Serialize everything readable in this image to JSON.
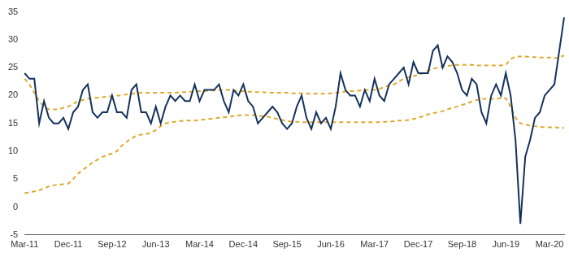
{
  "chart_data": {
    "type": "line",
    "categories": [
      "Mar-11",
      null,
      null,
      null,
      null,
      null,
      null,
      null,
      null,
      "Dec-11",
      null,
      null,
      null,
      null,
      null,
      null,
      null,
      null,
      "Sep-12",
      null,
      null,
      null,
      null,
      null,
      null,
      null,
      null,
      "Jun-13",
      null,
      null,
      null,
      null,
      null,
      null,
      null,
      null,
      "Mar-14",
      null,
      null,
      null,
      null,
      null,
      null,
      null,
      null,
      "Dec-14",
      null,
      null,
      null,
      null,
      null,
      null,
      null,
      null,
      "Sep-15",
      null,
      null,
      null,
      null,
      null,
      null,
      null,
      null,
      "Jun-16",
      null,
      null,
      null,
      null,
      null,
      null,
      null,
      null,
      "Mar-17",
      null,
      null,
      null,
      null,
      null,
      null,
      null,
      null,
      "Dec-17",
      null,
      null,
      null,
      null,
      null,
      null,
      null,
      null,
      "Sep-18",
      null,
      null,
      null,
      null,
      null,
      null,
      null,
      null,
      "Jun-19",
      null,
      null,
      null,
      null,
      null,
      null,
      null,
      null,
      "Mar-20",
      null,
      null,
      null
    ],
    "series": [
      {
        "color": "#14325c",
        "line_style": "solid",
        "values": [
          24,
          23,
          23,
          15,
          19,
          16,
          15,
          15,
          16,
          14,
          17,
          18,
          21,
          22,
          17,
          16,
          17,
          17,
          20,
          17,
          17,
          16,
          21,
          22,
          17,
          17,
          15,
          18,
          15,
          18,
          20,
          19,
          20,
          19,
          19,
          22,
          19,
          21,
          21,
          21,
          22,
          19,
          17,
          21,
          20,
          22,
          19,
          18,
          15,
          16,
          17,
          18,
          17,
          15,
          14,
          15,
          18,
          20,
          16,
          14,
          17,
          15,
          16,
          14,
          18,
          24,
          21,
          20,
          20,
          18,
          21,
          19,
          23,
          20,
          19,
          22,
          23,
          24,
          25,
          22,
          26,
          24,
          24,
          24,
          28,
          29,
          25,
          27,
          26,
          24,
          21,
          20,
          23,
          22,
          17,
          15,
          20,
          22,
          20,
          24,
          20,
          12,
          -3,
          9,
          12,
          16,
          17,
          20,
          21,
          22,
          28,
          34
        ]
      },
      {
        "color": "#e0a92e",
        "line_style": "dashed",
        "values": [
          23,
          22,
          20.5,
          19,
          18,
          17.5,
          17.5,
          17.5,
          17.8,
          18,
          18.5,
          19,
          19.2,
          19.4,
          19.5,
          19.6,
          19.7,
          19.8,
          19.9,
          20,
          20,
          20.2,
          20.3,
          20.4,
          20.5,
          20.5,
          20.5,
          20.5,
          20.5,
          20.5,
          20.5,
          20.5,
          20.6,
          20.6,
          20.7,
          20.7,
          20.8,
          20.8,
          20.9,
          20.9,
          21,
          21,
          21,
          20.9,
          20.8,
          20.8,
          20.7,
          20.7,
          20.6,
          20.6,
          20.5,
          20.5,
          20.5,
          20.5,
          20.5,
          20.4,
          20.4,
          20.4,
          20.3,
          20.3,
          20.3,
          20.3,
          20.3,
          20.4,
          20.5,
          20.6,
          20.7,
          20.8,
          20.8,
          20.9,
          21,
          21,
          21,
          21.2,
          21.5,
          21.8,
          22,
          22.5,
          23,
          23.3,
          23.5,
          23.7,
          24,
          24.5,
          24.8,
          25,
          25.2,
          25.3,
          25.4,
          25.5,
          25.5,
          25.5,
          25.5,
          25.4,
          25.4,
          25.4,
          25.4,
          25.4,
          25.4,
          25.5,
          26.5,
          27,
          27,
          27,
          26.9,
          26.9,
          26.8,
          26.8,
          26.8,
          26.7,
          26.8,
          27.2
        ]
      },
      {
        "color": "#e0a92e",
        "line_style": "dashed",
        "values": [
          2.5,
          2.6,
          2.8,
          3,
          3.3,
          3.7,
          3.9,
          4,
          4.1,
          4.2,
          5,
          6,
          6.7,
          7.3,
          8,
          8.5,
          9,
          9.3,
          9.6,
          10,
          11,
          11.7,
          12.3,
          12.8,
          13,
          13.1,
          13.3,
          13.8,
          14.5,
          15,
          15.2,
          15.3,
          15.4,
          15.5,
          15.5,
          15.5,
          15.6,
          15.7,
          15.8,
          15.9,
          16,
          16.1,
          16.2,
          16.3,
          16.4,
          16.5,
          16.5,
          16.5,
          16.4,
          16.3,
          16.2,
          16,
          15.8,
          15.6,
          15.4,
          15.3,
          15.3,
          15.2,
          15.2,
          15.2,
          15.2,
          15.2,
          15.2,
          15.2,
          15.2,
          15.2,
          15.2,
          15.2,
          15.2,
          15.2,
          15.2,
          15.2,
          15.2,
          15.2,
          15.3,
          15.3,
          15.4,
          15.5,
          15.5,
          15.6,
          15.8,
          16,
          16.3,
          16.6,
          16.8,
          17,
          17.2,
          17.5,
          17.8,
          18,
          18.3,
          18.6,
          18.9,
          19.2,
          19.4,
          19.4,
          19.4,
          19.4,
          19.5,
          19.5,
          18,
          16,
          15,
          14.8,
          14.6,
          14.5,
          14.4,
          14.3,
          14.3,
          14.3,
          14.2,
          14.2
        ]
      }
    ],
    "ylim": [
      -5,
      35
    ],
    "yticks": [
      -5,
      0,
      5,
      10,
      15,
      20,
      25,
      30,
      35
    ],
    "grid": false
  }
}
